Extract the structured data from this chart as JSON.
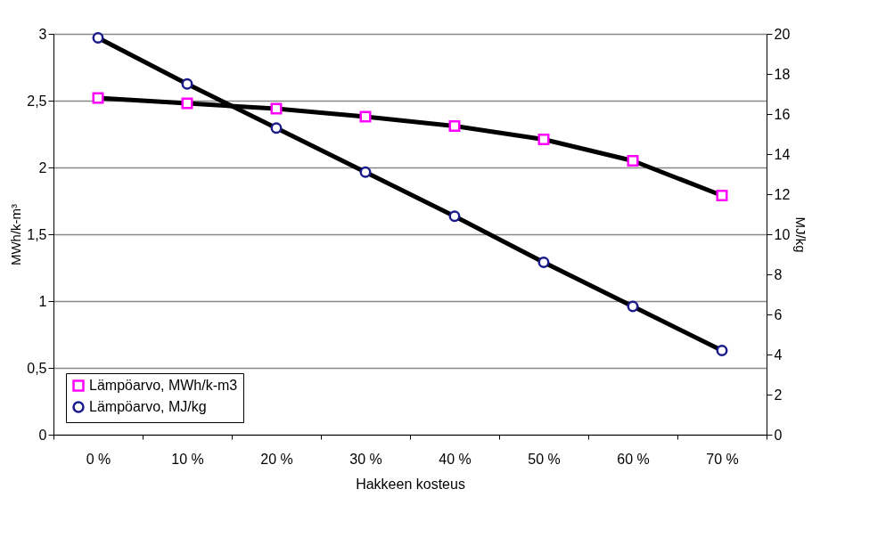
{
  "chart_data": {
    "type": "line",
    "xlabel": "Hakkeen kosteus",
    "ylabel": "MWh/k-m³",
    "y2label": "MJ/kg",
    "categories": [
      "0 %",
      "10 %",
      "20 %",
      "30 %",
      "40 %",
      "50 %",
      "60 %",
      "70 %"
    ],
    "series": [
      {
        "name": "Lämpöarvo, MWh/k-m3",
        "color": "#ff00ff",
        "marker": "square",
        "values": [
          2.52,
          2.48,
          2.44,
          2.38,
          2.31,
          2.21,
          2.05,
          1.79
        ]
      },
      {
        "name": "Lämpöarvo, MJ/kg",
        "color": "#1a1a8c",
        "marker": "circle",
        "axis": "y2",
        "values": [
          19.8,
          17.5,
          15.3,
          13.1,
          10.9,
          8.6,
          6.4,
          4.2
        ]
      }
    ],
    "ylim": [
      0,
      3
    ],
    "yticks": [
      0,
      {
        "value": 0.5,
        "label": "0,5"
      },
      1,
      {
        "value": 1.5,
        "label": "1,5"
      },
      2,
      {
        "value": 2.5,
        "label": "2,5"
      },
      3
    ],
    "y2lim": [
      0,
      20
    ],
    "y2ticks": [
      0,
      2,
      4,
      6,
      8,
      10,
      12,
      14,
      16,
      18,
      20
    ],
    "grid": "y",
    "legend": "bottom left",
    "line_style": "solid"
  }
}
